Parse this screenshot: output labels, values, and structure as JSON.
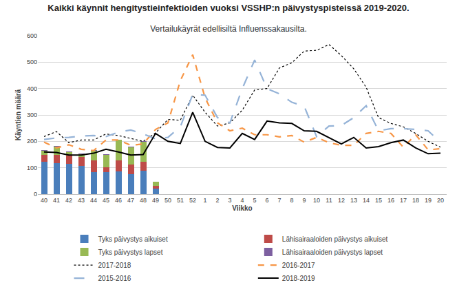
{
  "chart_data": {
    "type": "bar",
    "title": "Kaikki käynnit hengitystieinfektioiden vuoksi VSSHP:n päivystyspisteissä 2019-2020.",
    "subtitle": "Vertailukäyrät edellisiltä Influenssakausilta.",
    "x_label": "Viikko",
    "y_label": "Käyntien määrä",
    "categories": [
      "40",
      "41",
      "42",
      "43",
      "44",
      "45",
      "46",
      "47",
      "48",
      "49",
      "50",
      "51",
      "52",
      "1",
      "2",
      "3",
      "4",
      "5",
      "6",
      "7",
      "8",
      "9",
      "10",
      "11",
      "12",
      "13",
      "14",
      "15",
      "16",
      "17",
      "18",
      "19",
      "20"
    ],
    "ylim": [
      0,
      600
    ],
    "yticks": [
      0,
      100,
      200,
      300,
      400,
      500,
      600
    ],
    "grid": true,
    "stacked": true,
    "legend": "bottom",
    "series": [
      {
        "name": "Tyks päivystys aikuiset",
        "type": "bar",
        "color": "#4a7ebb",
        "values": [
          122,
          117,
          115,
          108,
          84,
          83,
          85,
          75,
          90,
          20,
          null,
          null,
          null,
          null,
          null,
          null,
          null,
          null,
          null,
          null,
          null,
          null,
          null,
          null,
          null,
          null,
          null,
          null,
          null,
          null,
          null,
          null,
          null
        ]
      },
      {
        "name": "Lähisairaaloiden päivystys aikuiset",
        "type": "bar",
        "color": "#be4b48",
        "values": [
          27,
          32,
          30,
          33,
          43,
          20,
          42,
          37,
          32,
          12,
          null,
          null,
          null,
          null,
          null,
          null,
          null,
          null,
          null,
          null,
          null,
          null,
          null,
          null,
          null,
          null,
          null,
          null,
          null,
          null,
          null,
          null,
          null
        ]
      },
      {
        "name": "Tyks päivystys lapset",
        "type": "bar",
        "color": "#98b954",
        "values": [
          15,
          32,
          15,
          10,
          37,
          47,
          78,
          65,
          76,
          15,
          null,
          null,
          null,
          null,
          null,
          null,
          null,
          null,
          null,
          null,
          null,
          null,
          null,
          null,
          null,
          null,
          null,
          null,
          null,
          null,
          null,
          null,
          null
        ]
      },
      {
        "name": "Lähisairaaloiden päivystys lapset",
        "type": "bar",
        "color": "#7d60a0",
        "values": [
          2,
          2,
          2,
          2,
          2,
          2,
          2,
          2,
          2,
          1,
          null,
          null,
          null,
          null,
          null,
          null,
          null,
          null,
          null,
          null,
          null,
          null,
          null,
          null,
          null,
          null,
          null,
          null,
          null,
          null,
          null,
          null,
          null
        ]
      },
      {
        "name": "2017-2018",
        "type": "line",
        "color": "#000000",
        "line_style": "dot",
        "values": [
          218,
          237,
          195,
          205,
          205,
          228,
          222,
          210,
          200,
          232,
          283,
          280,
          375,
          310,
          258,
          270,
          318,
          395,
          400,
          478,
          498,
          542,
          545,
          567,
          525,
          475,
          405,
          290,
          268,
          255,
          230,
          200,
          178
        ]
      },
      {
        "name": "2016-2017",
        "type": "line",
        "color": "#f79646",
        "line_style": "dash",
        "values": [
          197,
          175,
          187,
          170,
          165,
          205,
          205,
          185,
          190,
          245,
          270,
          430,
          528,
          365,
          270,
          240,
          250,
          225,
          225,
          217,
          222,
          197,
          215,
          195,
          185,
          185,
          230,
          238,
          230,
          178,
          225,
          168,
          172
        ]
      },
      {
        "name": "2015-2016",
        "type": "line",
        "color": "#95b3d7",
        "line_style": "longdash",
        "values": [
          207,
          213,
          215,
          220,
          222,
          218,
          235,
          243,
          228,
          210,
          215,
          255,
          378,
          375,
          290,
          270,
          400,
          508,
          400,
          380,
          348,
          333,
          218,
          258,
          260,
          290,
          335,
          240,
          248,
          248,
          245,
          240,
          197
        ]
      },
      {
        "name": "2018-2019",
        "type": "line",
        "color": "#000000",
        "line_style": "solid",
        "values": [
          160,
          158,
          148,
          148,
          155,
          170,
          160,
          148,
          150,
          230,
          200,
          192,
          310,
          200,
          177,
          175,
          230,
          207,
          277,
          270,
          268,
          240,
          238,
          215,
          190,
          215,
          175,
          180,
          195,
          205,
          175,
          153,
          155
        ]
      }
    ]
  }
}
